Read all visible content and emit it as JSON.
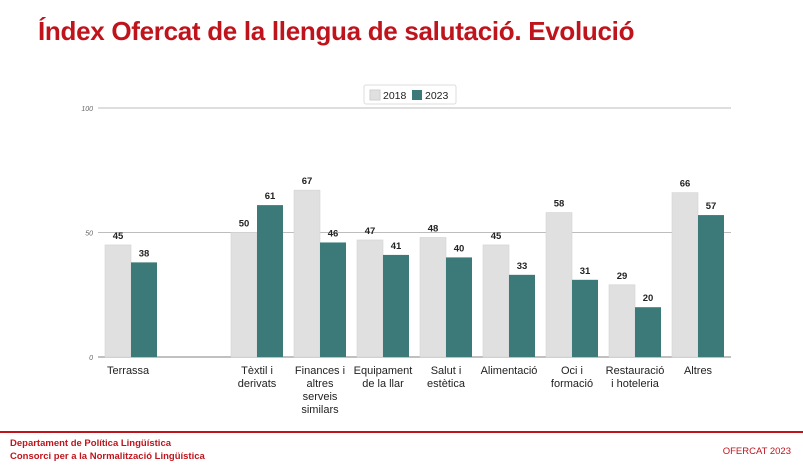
{
  "title": "Índex Ofercat de la llengua de salutació. Evolució",
  "footer": {
    "org_line1": "Departament de Política Lingüística",
    "org_line2": "Consorci per a la Normalització Lingüística",
    "right": "OFERCAT 2023"
  },
  "colors": {
    "title": "#c0141c",
    "s2018": "#e0e0e0",
    "s2023": "#3c7a7a"
  },
  "chart_data": {
    "type": "bar",
    "categories": [
      [
        "Terrassa"
      ],
      [
        ""
      ],
      [
        "Tèxtil i",
        "derivats"
      ],
      [
        "Finances i",
        "altres",
        "serveis",
        "similars"
      ],
      [
        "Equipament",
        "de la llar"
      ],
      [
        "Salut i",
        "estètica"
      ],
      [
        "Alimentació"
      ],
      [
        "Oci i",
        "formació"
      ],
      [
        "Restauració",
        "i hoteleria"
      ],
      [
        "Altres"
      ]
    ],
    "series": [
      {
        "name": "2018",
        "values": [
          45,
          null,
          50,
          67,
          47,
          48,
          45,
          58,
          29,
          66
        ]
      },
      {
        "name": "2023",
        "values": [
          38,
          null,
          61,
          46,
          41,
          40,
          33,
          31,
          20,
          57
        ]
      }
    ],
    "yticks": [
      0,
      50,
      100
    ],
    "ylim": [
      0,
      100
    ],
    "legend_position": "top-center",
    "grid": true
  }
}
